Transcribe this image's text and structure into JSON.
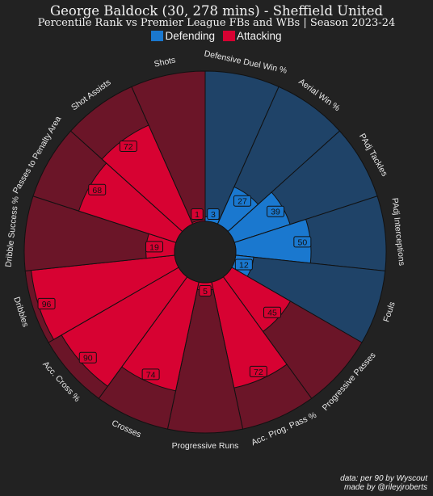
{
  "header": {
    "title": "George Baldock (30, 278 mins) - Sheffield United",
    "subtitle": "Percentile Rank vs Premier League FBs and WBs | Season 2023-24"
  },
  "legend": [
    {
      "label": "Defending",
      "color": "#1a78cf"
    },
    {
      "label": "Attacking",
      "color": "#d70232"
    }
  ],
  "footer": {
    "line1": "data: per 90 by Wyscout",
    "line2": "made by @rileyjroberts"
  },
  "colors": {
    "background": "#222222",
    "defending_fill": "#1a78cf",
    "defending_bg": "#1f4368",
    "attacking_fill": "#d70232",
    "attacking_bg": "#6b1528"
  },
  "chart_data": {
    "type": "radial-bar",
    "range": [
      0,
      100
    ],
    "params": [
      {
        "label": "Defensive Duel Win %",
        "value": 3,
        "group": "Defending"
      },
      {
        "label": "Aerial Win %",
        "value": 27,
        "group": "Defending"
      },
      {
        "label": "PAdj Tackles",
        "value": 39,
        "group": "Defending"
      },
      {
        "label": "PAdj Interceptions",
        "value": 50,
        "group": "Defending"
      },
      {
        "label": "Fouls",
        "value": 12,
        "group": "Defending"
      },
      {
        "label": "Progressive Passes",
        "value": 45,
        "group": "Attacking"
      },
      {
        "label": "Acc. Prog. Pass %",
        "value": 72,
        "group": "Attacking"
      },
      {
        "label": "Progressive Runs",
        "value": 5,
        "group": "Attacking"
      },
      {
        "label": "Crosses",
        "value": 74,
        "group": "Attacking"
      },
      {
        "label": "Acc. Cross %",
        "value": 90,
        "group": "Attacking"
      },
      {
        "label": "Dribbles",
        "value": 96,
        "group": "Attacking"
      },
      {
        "label": "Dribble Success %",
        "value": 19,
        "group": "Attacking"
      },
      {
        "label": "Passes to Penalty Area",
        "value": 68,
        "group": "Attacking"
      },
      {
        "label": "Shot Assists",
        "value": 72,
        "group": "Attacking"
      },
      {
        "label": "Shots",
        "value": 1,
        "group": "Attacking"
      }
    ]
  }
}
